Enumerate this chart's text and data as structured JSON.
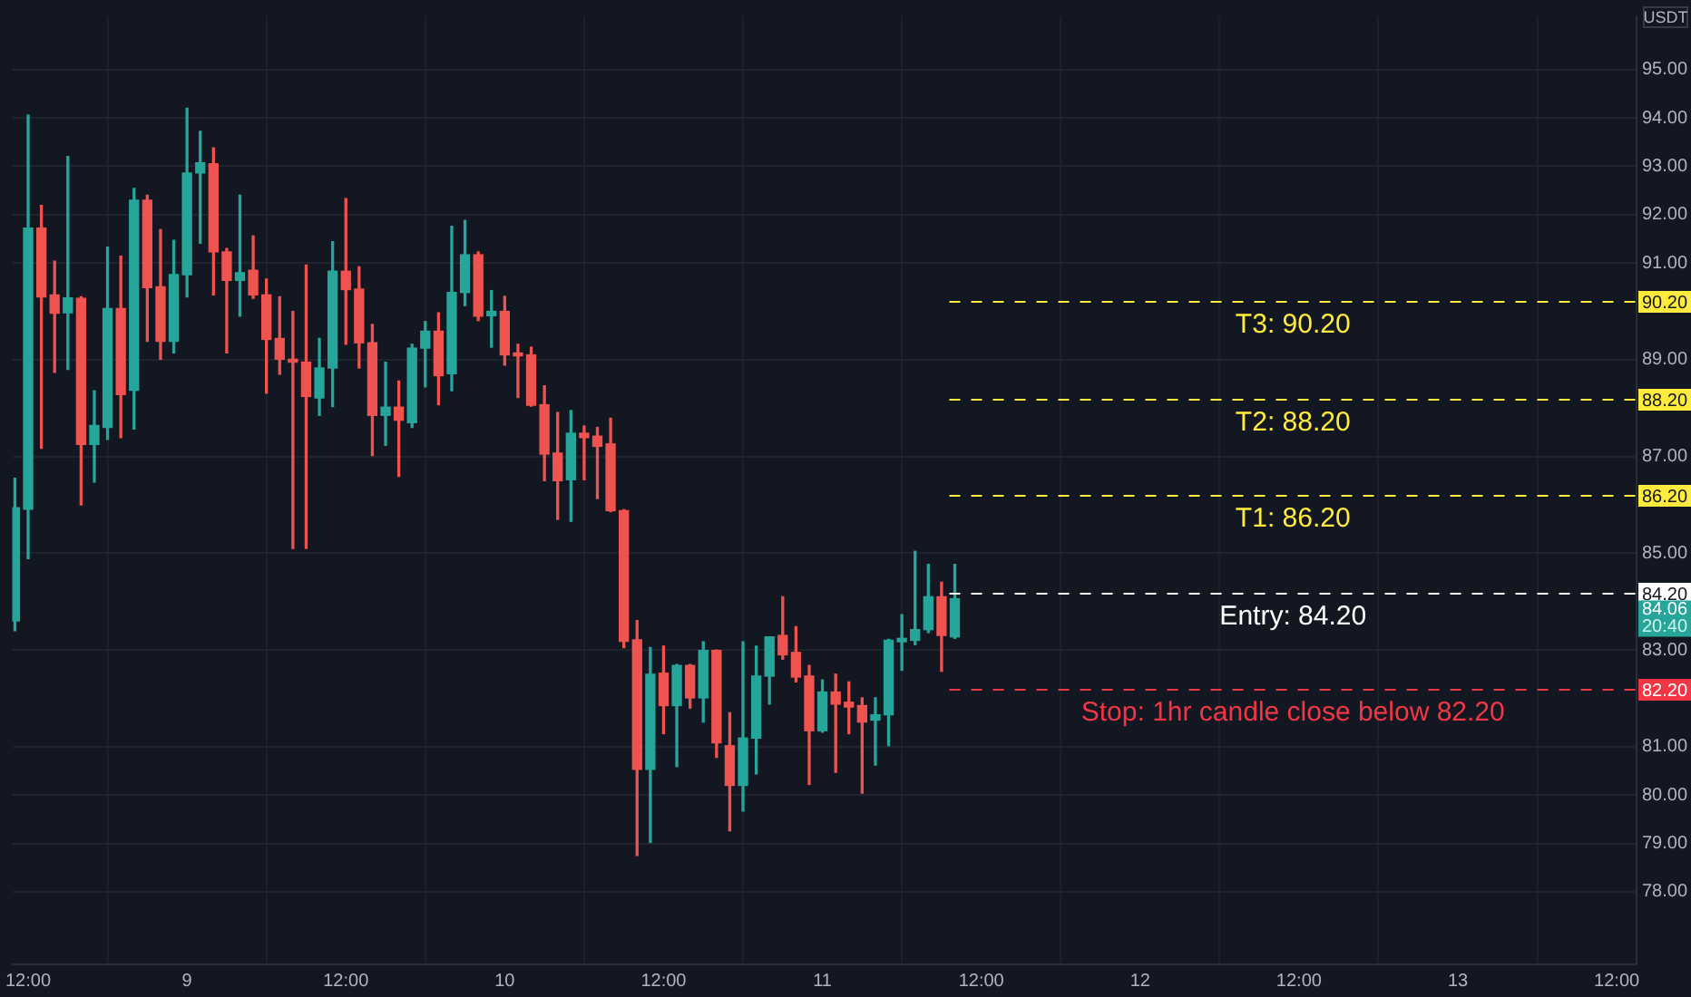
{
  "chart_data": {
    "type": "candlestick",
    "ylabel": "USDT",
    "x": [
      "--01-08T11:00",
      "--01-08T12:00",
      "--01-08T13:00",
      "--01-08T14:00",
      "--01-08T15:00",
      "--01-08T16:00",
      "--01-08T17:00",
      "--01-08T18:00",
      "--01-08T19:00",
      "--01-08T20:00",
      "--01-08T21:00",
      "--01-08T22:00",
      "--01-08T23:00",
      "--01-09T00:00",
      "--01-09T01:00",
      "--01-09T02:00",
      "--01-09T03:00",
      "--01-09T04:00",
      "--01-09T05:00",
      "--01-09T06:00",
      "--01-09T07:00",
      "--01-09T08:00",
      "--01-09T09:00",
      "--01-09T10:00",
      "--01-09T11:00",
      "--01-09T12:00",
      "--01-09T13:00",
      "--01-09T14:00",
      "--01-09T15:00",
      "--01-09T16:00",
      "--01-09T17:00",
      "--01-09T18:00",
      "--01-09T19:00",
      "--01-09T20:00",
      "--01-09T21:00",
      "--01-09T22:00",
      "--01-09T23:00",
      "--01-10T00:00",
      "--01-10T01:00",
      "--01-10T02:00",
      "--01-10T03:00",
      "--01-10T04:00",
      "--01-10T05:00",
      "--01-10T06:00",
      "--01-10T07:00",
      "--01-10T08:00",
      "--01-10T09:00",
      "--01-10T10:00",
      "--01-10T11:00",
      "--01-10T12:00",
      "--01-10T13:00",
      "--01-10T14:00",
      "--01-10T15:00",
      "--01-10T16:00",
      "--01-10T17:00",
      "--01-10T18:00",
      "--01-10T19:00",
      "--01-10T20:00",
      "--01-10T21:00",
      "--01-10T22:00",
      "--01-10T23:00",
      "--01-11T00:00",
      "--01-11T01:00",
      "--01-11T02:00",
      "--01-11T03:00",
      "--01-11T04:00",
      "--01-11T05:00",
      "--01-11T06:00",
      "--01-11T07:00",
      "--01-11T08:00",
      "--01-11T09:00",
      "--01-11T10:00"
    ],
    "ohlc": [
      [
        83.6,
        86.55,
        83.4,
        85.94
      ],
      [
        85.91,
        94.06,
        84.89,
        91.72
      ],
      [
        91.72,
        92.19,
        87.17,
        90.3
      ],
      [
        90.34,
        91.04,
        88.74,
        89.96
      ],
      [
        89.97,
        93.2,
        88.8,
        90.28
      ],
      [
        90.27,
        90.3,
        86.0,
        87.25
      ],
      [
        87.25,
        88.36,
        86.47,
        87.64
      ],
      [
        87.6,
        91.33,
        87.35,
        90.06
      ],
      [
        90.06,
        91.14,
        87.39,
        88.28
      ],
      [
        88.37,
        92.54,
        87.57,
        92.3
      ],
      [
        92.3,
        92.4,
        89.38,
        90.49
      ],
      [
        90.51,
        91.69,
        89.01,
        89.38
      ],
      [
        89.38,
        91.47,
        89.14,
        90.76
      ],
      [
        90.76,
        94.2,
        90.3,
        92.86
      ],
      [
        92.86,
        93.72,
        91.41,
        93.07
      ],
      [
        93.05,
        93.38,
        90.34,
        91.23
      ],
      [
        91.23,
        91.3,
        89.14,
        90.64
      ],
      [
        90.64,
        92.4,
        89.9,
        90.8
      ],
      [
        90.85,
        91.56,
        90.27,
        90.34
      ],
      [
        90.34,
        90.67,
        88.31,
        89.42
      ],
      [
        89.44,
        90.3,
        88.7,
        89.01
      ],
      [
        89.01,
        90.0,
        85.1,
        88.95
      ],
      [
        88.95,
        90.96,
        85.1,
        88.24
      ],
      [
        88.21,
        89.44,
        87.85,
        88.83
      ],
      [
        88.83,
        91.44,
        88.03,
        90.83
      ],
      [
        90.83,
        92.33,
        89.32,
        90.45
      ],
      [
        90.46,
        90.92,
        88.83,
        89.35
      ],
      [
        89.35,
        89.73,
        87.02,
        87.85
      ],
      [
        87.85,
        88.95,
        87.23,
        88.02
      ],
      [
        88.02,
        88.56,
        86.59,
        87.75
      ],
      [
        87.7,
        89.32,
        87.6,
        89.24
      ],
      [
        89.24,
        89.79,
        88.44,
        89.59
      ],
      [
        89.59,
        89.97,
        88.07,
        88.67
      ],
      [
        88.71,
        91.76,
        88.36,
        90.39
      ],
      [
        90.39,
        91.88,
        90.12,
        91.17
      ],
      [
        91.17,
        91.23,
        89.81,
        89.9
      ],
      [
        89.91,
        90.43,
        89.26,
        90.0
      ],
      [
        90.0,
        90.31,
        88.89,
        89.1
      ],
      [
        89.14,
        89.32,
        88.22,
        89.08
      ],
      [
        89.1,
        89.26,
        88.04,
        88.06
      ],
      [
        88.07,
        88.46,
        86.5,
        87.05
      ],
      [
        87.07,
        87.91,
        85.7,
        86.5
      ],
      [
        86.52,
        87.95,
        85.66,
        87.48
      ],
      [
        87.48,
        87.63,
        86.52,
        87.39
      ],
      [
        87.42,
        87.6,
        86.13,
        87.21
      ],
      [
        87.26,
        87.79,
        85.86,
        85.88
      ],
      [
        85.88,
        85.9,
        83.05,
        83.18
      ],
      [
        83.21,
        83.61,
        78.75,
        80.53
      ],
      [
        80.53,
        83.05,
        79.02,
        82.5
      ],
      [
        82.52,
        83.08,
        81.27,
        81.85
      ],
      [
        81.85,
        82.7,
        80.59,
        82.68
      ],
      [
        82.68,
        82.7,
        81.8,
        82.01
      ],
      [
        82.01,
        83.17,
        81.51,
        82.99
      ],
      [
        82.99,
        83.0,
        80.78,
        81.08
      ],
      [
        81.02,
        81.7,
        79.26,
        80.2
      ],
      [
        80.2,
        83.17,
        79.67,
        81.18
      ],
      [
        81.18,
        83.08,
        80.44,
        82.46
      ],
      [
        82.46,
        83.27,
        81.88,
        83.27
      ],
      [
        83.3,
        84.1,
        82.81,
        82.9
      ],
      [
        82.95,
        83.48,
        82.34,
        82.44
      ],
      [
        82.46,
        82.68,
        80.22,
        81.33
      ],
      [
        81.33,
        82.38,
        81.3,
        82.13
      ],
      [
        82.13,
        82.5,
        80.47,
        81.88
      ],
      [
        81.92,
        82.34,
        81.27,
        81.82
      ],
      [
        81.85,
        82.01,
        80.04,
        81.51
      ],
      [
        81.55,
        82.01,
        80.62,
        81.66
      ],
      [
        81.66,
        83.22,
        81.02,
        83.2
      ],
      [
        83.17,
        83.73,
        82.58,
        83.24
      ],
      [
        83.2,
        85.04,
        83.11,
        83.42
      ],
      [
        83.42,
        84.77,
        83.36,
        84.1
      ],
      [
        84.1,
        84.4,
        82.56,
        83.3
      ],
      [
        83.27,
        84.77,
        83.24,
        84.06
      ]
    ],
    "colors": [
      "#26a69a",
      "#26a69a",
      "#ef5350",
      "#ef5350",
      "#26a69a",
      "#ef5350",
      "#26a69a",
      "#26a69a",
      "#ef5350",
      "#26a69a",
      "#ef5350",
      "#ef5350",
      "#26a69a",
      "#26a69a",
      "#26a69a",
      "#ef5350",
      "#ef5350",
      "#26a69a",
      "#ef5350",
      "#ef5350",
      "#ef5350",
      "#ef5350",
      "#ef5350",
      "#26a69a",
      "#26a69a",
      "#ef5350",
      "#ef5350",
      "#ef5350",
      "#26a69a",
      "#ef5350",
      "#26a69a",
      "#26a69a",
      "#ef5350",
      "#26a69a",
      "#26a69a",
      "#ef5350",
      "#26a69a",
      "#ef5350",
      "#ef5350",
      "#ef5350",
      "#ef5350",
      "#ef5350",
      "#26a69a",
      "#ef5350",
      "#ef5350",
      "#ef5350",
      "#ef5350",
      "#ef5350",
      "#26a69a",
      "#ef5350",
      "#26a69a",
      "#ef5350",
      "#26a69a",
      "#ef5350",
      "#ef5350",
      "#26a69a",
      "#26a69a",
      "#26a69a",
      "#ef5350",
      "#ef5350",
      "#ef5350",
      "#26a69a",
      "#ef5350",
      "#ef5350",
      "#ef5350",
      "#26a69a",
      "#26a69a",
      "#26a69a",
      "#26a69a",
      "#26a69a",
      "#ef5350",
      "#26a69a"
    ],
    "xlim": [
      "--01-08T10:48",
      "--01-13T13:30"
    ],
    "xticks": [
      {
        "value": "--01-08T12:00",
        "label": "12:00"
      },
      {
        "value": "--01-09",
        "label": "9"
      },
      {
        "value": "--01-09T12:00",
        "label": "12:00"
      },
      {
        "value": "--01-10",
        "label": "10"
      },
      {
        "value": "--01-10T12:00",
        "label": "12:00"
      },
      {
        "value": "--01-11",
        "label": "11"
      },
      {
        "value": "--01-11T12:00",
        "label": "12:00"
      },
      {
        "value": "--01-12",
        "label": "12"
      },
      {
        "value": "--01-12T12:00",
        "label": "12:00"
      },
      {
        "value": "--01-13",
        "label": "13"
      },
      {
        "value": "--01-13T12:00",
        "label": "12:00"
      }
    ],
    "ylim": [
      76.5,
      96.1
    ],
    "yticks": [
      {
        "value": 78,
        "label": "78.00"
      },
      {
        "value": 79,
        "label": "79.00"
      },
      {
        "value": 80,
        "label": "80.00"
      },
      {
        "value": 81,
        "label": "81.00"
      },
      {
        "value": 83,
        "label": "83.00"
      },
      {
        "value": 85,
        "label": "85.00"
      },
      {
        "value": 87,
        "label": "87.00"
      },
      {
        "value": 89,
        "label": "89.00"
      },
      {
        "value": 91,
        "label": "91.00"
      },
      {
        "value": 92,
        "label": "92.00"
      },
      {
        "value": 93,
        "label": "93.00"
      },
      {
        "value": 94,
        "label": "94.00"
      },
      {
        "value": 95,
        "label": "95.00"
      }
    ],
    "grid": true,
    "ref_lines": [
      {
        "axis": "y",
        "value": 90.2,
        "label": "T3: 90.20",
        "color": "#ffeb3b",
        "line_style": "dashed"
      },
      {
        "axis": "y",
        "value": 88.2,
        "label": "T2: 88.20",
        "color": "#ffeb3b",
        "line_style": "dashed"
      },
      {
        "axis": "y",
        "value": 86.2,
        "label": "T1: 86.20",
        "color": "#ffeb3b",
        "line_style": "dashed"
      },
      {
        "axis": "y",
        "value": 84.2,
        "label": "Entry: 84.20",
        "color": "#ffffff",
        "line_style": "dashed"
      },
      {
        "axis": "y",
        "value": 82.2,
        "label": "Stop: 1hr candle close below 82.20",
        "color": "#f23645",
        "line_style": "dashed"
      }
    ],
    "annotations": [
      "90.20",
      "88.20",
      "86.20",
      "84.20",
      "82.20",
      "84.06",
      "20:40"
    ]
  }
}
